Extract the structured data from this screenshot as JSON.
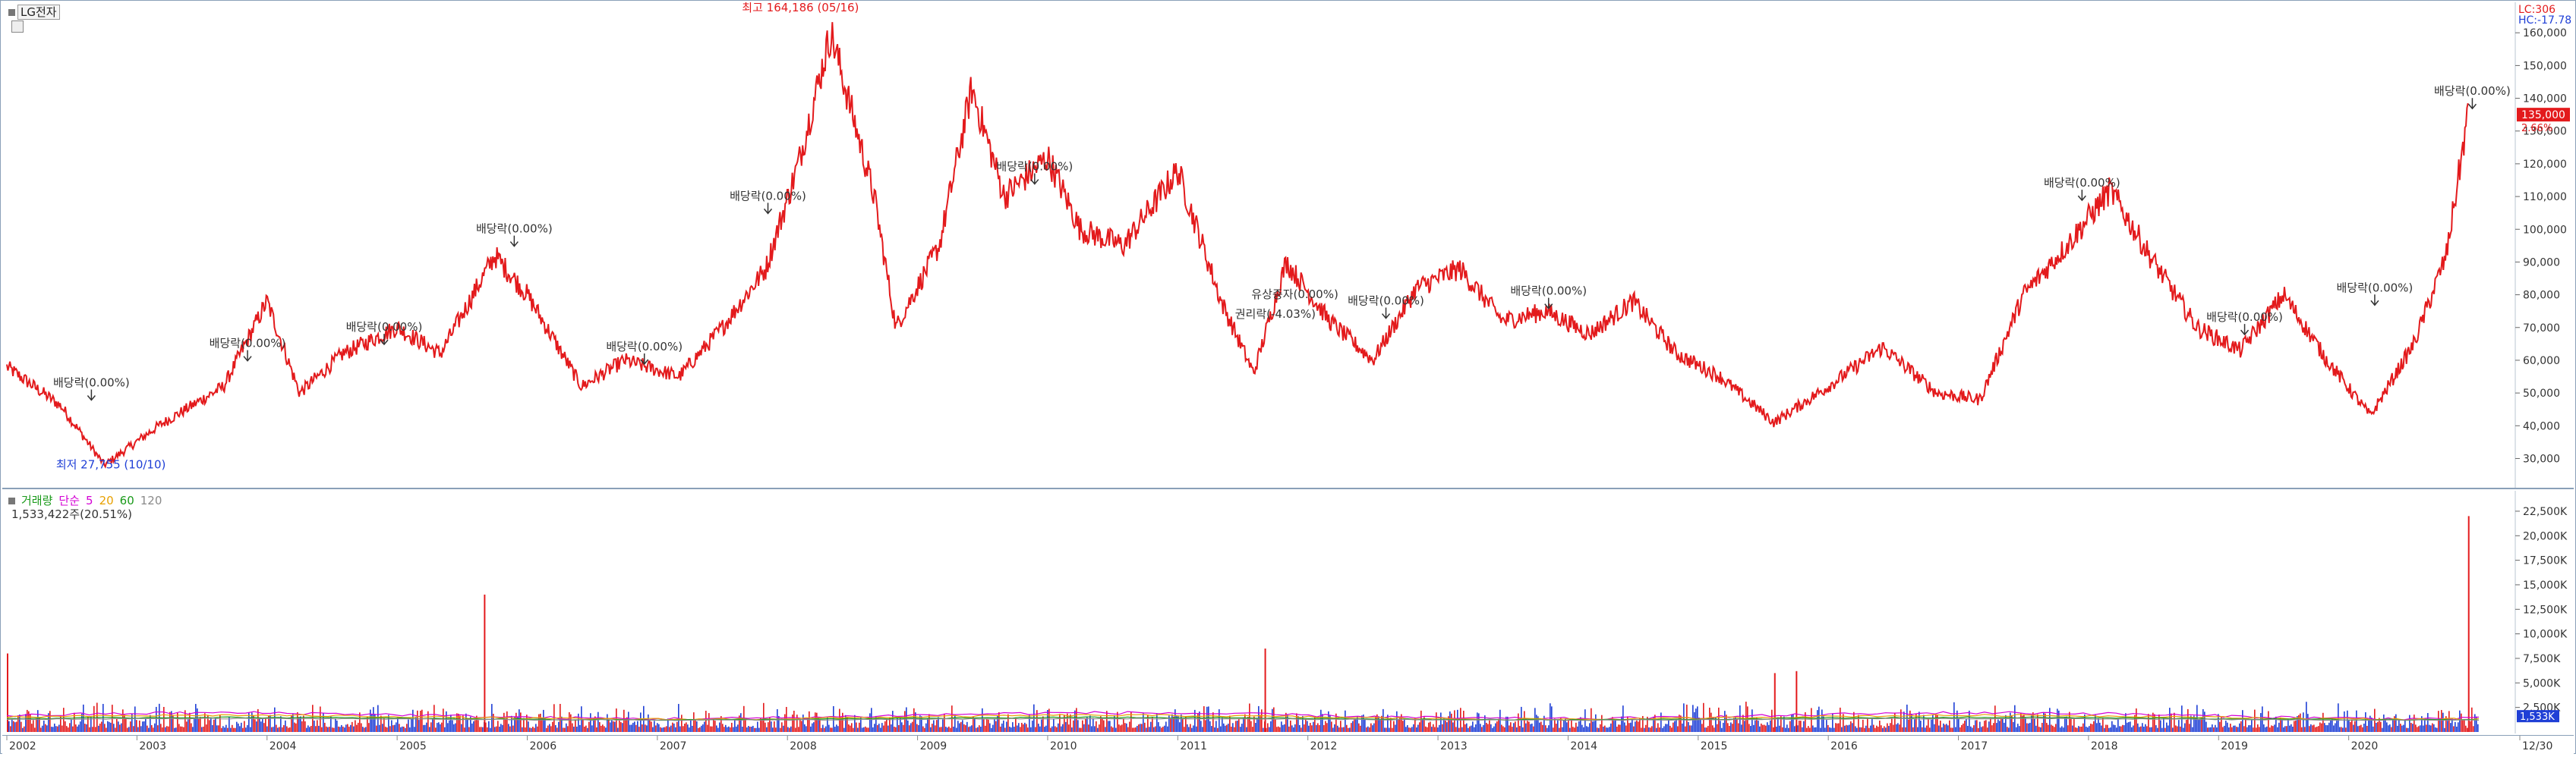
{
  "header": {
    "stock_name": "LG전자"
  },
  "price_pane": {
    "last_price_tag": "135,000",
    "change_tag": "2.66%",
    "lc_label": "LC:306",
    "hc_label": "HC:-17.78",
    "annotations": {
      "high": "최고 164,186 (05/16)",
      "low": "최저 27,755 (10/10)",
      "dividend": "배당락(0.00%)",
      "rights": "권리락(-4.03%)",
      "capital_increase": "유상증자(0.00%)"
    }
  },
  "volume_pane": {
    "legend": {
      "title": "거래량",
      "ma_prefix": "단순",
      "ma1": "5",
      "ma2": "20",
      "ma3": "60",
      "ma4": "120"
    },
    "current_volume": "1,533,422주(20.51%)",
    "last_volume_tag": "1,533K"
  },
  "colors": {
    "up": "#e31a1c",
    "down": "#1f3fd6",
    "ma5": "#d400d4",
    "ma20": "#e8a000",
    "ma60": "#1a9a1a",
    "ma120": "#8a8a8a",
    "price_line": "#e31a1c"
  },
  "chart_data": [
    {
      "type": "line",
      "title": "",
      "x": [
        "2002-01",
        "2002-06",
        "2002-10",
        "2003-03",
        "2003-09",
        "2004-01",
        "2004-04",
        "2004-08",
        "2005-01",
        "2005-05",
        "2005-10",
        "2006-01",
        "2006-06",
        "2006-10",
        "2007-03",
        "2007-07",
        "2007-11",
        "2008-02",
        "2008-05",
        "2008-09",
        "2008-11",
        "2009-03",
        "2009-06",
        "2009-09",
        "2010-01",
        "2010-04",
        "2010-08",
        "2011-01",
        "2011-05",
        "2011-08",
        "2011-11",
        "2012-03",
        "2012-07",
        "2012-11",
        "2013-03",
        "2013-07",
        "2013-11",
        "2014-03",
        "2014-07",
        "2014-11",
        "2015-03",
        "2015-08",
        "2016-01",
        "2016-06",
        "2016-11",
        "2017-03",
        "2017-07",
        "2017-11",
        "2018-03",
        "2018-07",
        "2018-11",
        "2019-03",
        "2019-07",
        "2019-11",
        "2020-03",
        "2020-07",
        "2020-10",
        "2020-12"
      ],
      "series": [
        {
          "values": [
            58000,
            46000,
            28000,
            40000,
            52000,
            78000,
            50000,
            62000,
            70000,
            62000,
            92000,
            80000,
            52000,
            60000,
            55000,
            70000,
            88000,
            120000,
            160000,
            110000,
            70000,
            95000,
            143000,
            110000,
            122000,
            100000,
            95000,
            118000,
            78000,
            56000,
            90000,
            72000,
            60000,
            82000,
            88000,
            72000,
            75000,
            68000,
            78000,
            62000,
            55000,
            41000,
            52000,
            64000,
            50000,
            48000,
            80000,
            95000,
            112000,
            90000,
            70000,
            63000,
            80000,
            60000,
            43000,
            65000,
            92000,
            135000
          ]
        }
      ],
      "yticks": [
        "30,000",
        "40,000",
        "50,000",
        "60,000",
        "70,000",
        "80,000",
        "90,000",
        "100,000",
        "110,000",
        "120,000",
        "130,000",
        "140,000",
        "150,000",
        "160,000"
      ],
      "ylim": [
        22000,
        167000
      ],
      "xtick_labels": [
        "2002",
        "2003",
        "2004",
        "2005",
        "2006",
        "2007",
        "2008",
        "2009",
        "2010",
        "2011",
        "2012",
        "2013",
        "2014",
        "2015",
        "2016",
        "2017",
        "2018",
        "2019",
        "2020",
        "12/30"
      ]
    },
    {
      "type": "bar",
      "title": "거래량",
      "yticks": [
        "2,500K",
        "5,000K",
        "7,500K",
        "10,000K",
        "12,500K",
        "15,000K",
        "17,500K",
        "20,000K",
        "22,500K"
      ],
      "ylim": [
        0,
        23500
      ],
      "spikes": [
        {
          "x": "2002-01",
          "value": 8000
        },
        {
          "x": "2005-09",
          "value": 14000
        },
        {
          "x": "2011-09",
          "value": 8500
        },
        {
          "x": "2015-08",
          "value": 6000
        },
        {
          "x": "2015-10",
          "value": 6200
        },
        {
          "x": "2020-12",
          "value": 22000
        }
      ]
    }
  ]
}
